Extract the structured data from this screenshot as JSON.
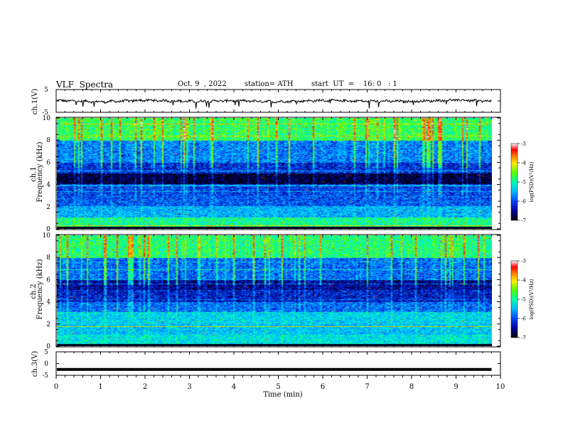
{
  "header": {
    "title": "VLF  Spectra",
    "date": "Oct. 9  , 2022",
    "station": "station= ATH",
    "start": "start  UT  =    16: 0   : 1"
  },
  "colors": {
    "spectrogram_scale": [
      "#000055",
      "#0000cc",
      "#0055ff",
      "#00bbff",
      "#00ffaa",
      "#33ff33",
      "#ccff00",
      "#ffff00",
      "#ff9900",
      "#ff0000",
      "#ffffff"
    ],
    "frame": "#000000",
    "trace": "#000000"
  },
  "chart_data": [
    {
      "type": "line",
      "name": "ch1-waveform",
      "ylabel": "ch.1(V)",
      "ylim": [
        -5,
        5
      ],
      "yticks": [
        "5",
        "-5"
      ],
      "xlim": [
        0,
        10
      ],
      "note_values": "noisy waveform centered near 0 V, amplitude ~1 V, data to 9.8 min",
      "x": [
        0,
        1,
        2,
        3,
        4,
        5,
        6,
        7,
        8,
        9,
        9.8
      ],
      "y": [
        0.2,
        -0.4,
        0.3,
        -0.2,
        0.1,
        -0.3,
        0.2,
        -0.1,
        -0.2,
        0.4,
        -0.1
      ]
    },
    {
      "type": "heatmap",
      "name": "ch1-spectrogram",
      "ylabel_top": "ch.1",
      "ylabel": "Frequency  (kHz)",
      "yticks": [
        "0",
        "2",
        "4",
        "6",
        "8",
        "10"
      ],
      "ylim": [
        0,
        10
      ],
      "xlim": [
        0,
        9.8
      ],
      "colorbar": {
        "label": "log(PSD)(V²/Hz)",
        "ticks": [
          "-3",
          "-4",
          "-5",
          "-6",
          "-7"
        ],
        "range": [
          -7,
          -3
        ]
      },
      "freq_band_levels_log_psd": {
        "0-1 kHz": -5.0,
        "1-2 kHz": -5.6,
        "2-3 kHz": -6.0,
        "3-4 kHz": -6.1,
        "4-5 kHz": -6.8,
        "5-6 kHz": -6.2,
        "6-8 kHz": -5.8,
        "8-10 kHz": -4.8
      }
    },
    {
      "type": "heatmap",
      "name": "ch2-spectrogram",
      "ylabel_top": "ch.2",
      "ylabel": "Frequency  (kHz)",
      "yticks": [
        "0",
        "2",
        "4",
        "6",
        "8",
        "10"
      ],
      "ylim": [
        0,
        10
      ],
      "xlim": [
        0,
        9.8
      ],
      "colorbar": {
        "label": "log(PSD)(V²/Hz)",
        "ticks": [
          "-3",
          "-4",
          "-5",
          "-6",
          "-7"
        ],
        "range": [
          -7,
          -3
        ]
      },
      "freq_band_levels_log_psd": {
        "0-1 kHz": -5.3,
        "1-2 kHz": -5.5,
        "2-3 kHz": -5.4,
        "3-4 kHz": -5.9,
        "4-5 kHz": -6.3,
        "5-6 kHz": -6.5,
        "6-8 kHz": -5.9,
        "8-10 kHz": -4.9
      }
    },
    {
      "type": "line",
      "name": "ch3-waveform",
      "ylabel": "ch.3(V)",
      "ylim": [
        -5,
        5
      ],
      "yticks": [
        "5",
        "0",
        "-5"
      ],
      "xlim": [
        0,
        10
      ],
      "x": [
        0,
        9.8
      ],
      "y": [
        -2.5,
        -2.5
      ]
    }
  ],
  "xaxis": {
    "label": "Time  (min)",
    "ticks": [
      "0",
      "1",
      "2",
      "3",
      "4",
      "5",
      "6",
      "7",
      "8",
      "9",
      "10"
    ]
  }
}
